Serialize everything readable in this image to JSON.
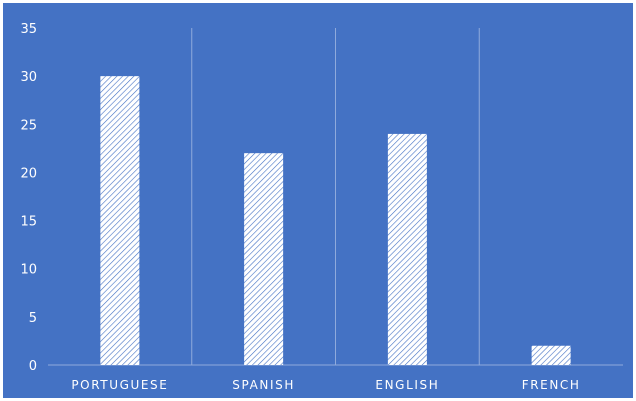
{
  "chart_data": {
    "type": "bar",
    "categories": [
      "PORTUGUESE",
      "SPANISH",
      "ENGLISH",
      "FRENCH"
    ],
    "values": [
      30,
      22,
      24,
      2
    ],
    "title": "",
    "xlabel": "",
    "ylabel": "",
    "ylim": [
      0,
      35
    ],
    "yticks": [
      "0",
      "5",
      "10",
      "15",
      "20",
      "25",
      "30",
      "35"
    ],
    "grid": "vertical category separators",
    "legend": "none",
    "colors": {
      "background": "#4472c4",
      "bar_fill": "#ffffff",
      "bar_hatch": "#4472c4",
      "text": "#ffffff",
      "grid": "#8faadc"
    }
  }
}
